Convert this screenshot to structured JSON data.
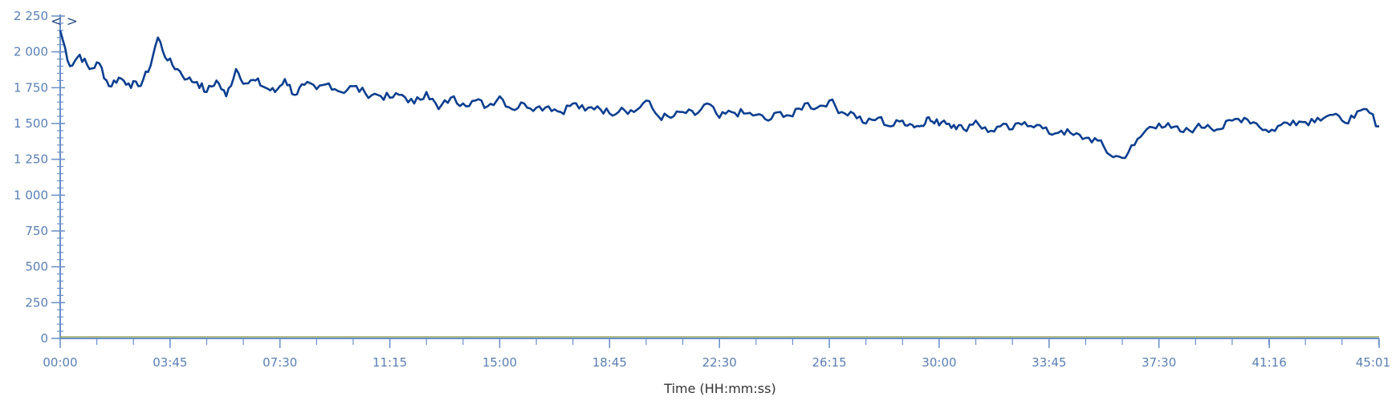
{
  "colors": {
    "series": "#0d3f8f",
    "axis": "#6b8fc7",
    "tick_label": "#5b7fb3",
    "baseline_green": "#9aa860",
    "nav_glyph": "#2e4f8a"
  },
  "nav": {
    "glyph": "< >"
  },
  "chart_data": {
    "type": "line",
    "title": "",
    "xlabel": "Time (HH:mm:ss)",
    "ylabel": "",
    "x_unit": "seconds",
    "xlim": [
      0,
      2701
    ],
    "ylim": [
      0,
      2250
    ],
    "grid": false,
    "yticks": [
      0,
      250,
      500,
      750,
      1000,
      1250,
      1500,
      1750,
      2000,
      2250
    ],
    "ytick_labels": [
      "0",
      "250",
      "500",
      "750",
      "1 000",
      "1 250",
      "1 500",
      "1 750",
      "2 000",
      "2 250"
    ],
    "xticks": [
      0,
      225,
      450,
      675,
      900,
      1125,
      1350,
      1575,
      1800,
      2025,
      2250,
      2476,
      2701
    ],
    "xtick_labels": [
      "00:00",
      "03:45",
      "07:30",
      "11:15",
      "15:00",
      "18:45",
      "22:30",
      "26:15",
      "30:00",
      "33:45",
      "37:30",
      "41:16",
      "45:01"
    ],
    "series": [
      {
        "x": [
          0,
          20,
          40,
          60,
          80,
          100,
          120,
          140,
          160,
          180,
          200,
          220,
          240,
          260,
          280,
          300,
          320,
          340,
          360,
          380,
          400,
          420,
          440,
          460,
          480,
          500,
          525,
          550,
          575,
          600,
          625,
          650,
          675,
          700,
          725,
          750,
          775,
          800,
          825,
          850,
          875,
          900,
          925,
          950,
          975,
          1000,
          1025,
          1050,
          1075,
          1100,
          1125,
          1150,
          1175,
          1200,
          1225,
          1250,
          1275,
          1300,
          1325,
          1350,
          1375,
          1400,
          1425,
          1450,
          1475,
          1500,
          1525,
          1550,
          1575,
          1600,
          1625,
          1650,
          1675,
          1700,
          1725,
          1745,
          1760,
          1775,
          1790,
          1810,
          1830,
          1850,
          1875,
          1900,
          1925,
          1950,
          1975,
          2000,
          2025,
          2050,
          2075,
          2100,
          2125,
          2150,
          2175,
          2200,
          2225,
          2250,
          2275,
          2300,
          2325,
          2350,
          2375,
          2400,
          2425,
          2450,
          2475,
          2500,
          2525,
          2550,
          2575,
          2600,
          2625,
          2650,
          2675,
          2701
        ],
        "values": [
          2150,
          1900,
          1980,
          1880,
          1920,
          1760,
          1820,
          1780,
          1760,
          1860,
          2100,
          1940,
          1880,
          1810,
          1790,
          1720,
          1800,
          1690,
          1880,
          1780,
          1800,
          1750,
          1720,
          1810,
          1700,
          1770,
          1740,
          1780,
          1720,
          1760,
          1710,
          1700,
          1680,
          1700,
          1640,
          1720,
          1600,
          1680,
          1640,
          1660,
          1620,
          1690,
          1600,
          1640,
          1610,
          1620,
          1580,
          1640,
          1590,
          1620,
          1570,
          1610,
          1580,
          1660,
          1550,
          1540,
          1580,
          1560,
          1640,
          1540,
          1580,
          1570,
          1560,
          1520,
          1580,
          1550,
          1640,
          1610,
          1660,
          1580,
          1570,
          1500,
          1540,
          1480,
          1520,
          1490,
          1480,
          1540,
          1500,
          1520,
          1490,
          1460,
          1520,
          1440,
          1480,
          1460,
          1510,
          1490,
          1430,
          1450,
          1420,
          1400,
          1380,
          1280,
          1260,
          1350,
          1460,
          1500,
          1470,
          1440,
          1470,
          1490,
          1460,
          1520,
          1540,
          1500,
          1440,
          1490,
          1520,
          1510,
          1540,
          1560,
          1520,
          1540,
          1600,
          1480
        ]
      }
    ]
  }
}
